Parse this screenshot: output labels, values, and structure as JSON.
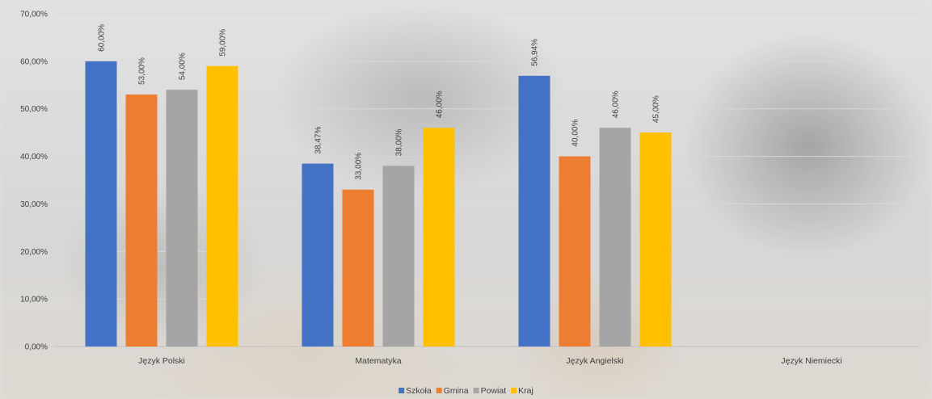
{
  "chart_data": {
    "type": "bar",
    "categories": [
      "Język Polski",
      "Matematyka",
      "Język Angielski",
      "Język Niemiecki"
    ],
    "series": [
      {
        "name": "Szkoła",
        "color": "#4472C4",
        "values": [
          60.0,
          38.47,
          56.94,
          null
        ],
        "labels": [
          "60,00%",
          "38,47%",
          "56,94%",
          null
        ]
      },
      {
        "name": "Gmina",
        "color": "#ED7D31",
        "values": [
          53.0,
          33.0,
          40.0,
          null
        ],
        "labels": [
          "53,00%",
          "33,00%",
          "40,00%",
          null
        ]
      },
      {
        "name": "Powiat",
        "color": "#A5A5A5",
        "values": [
          54.0,
          38.0,
          46.0,
          null
        ],
        "labels": [
          "54,00%",
          "38,00%",
          "46,00%",
          null
        ]
      },
      {
        "name": "Kraj",
        "color": "#FFC000",
        "values": [
          59.0,
          46.0,
          45.0,
          null
        ],
        "labels": [
          "59,00%",
          "46,00%",
          "45,00%",
          null
        ]
      }
    ],
    "y_ticks": [
      "0,00%",
      "10,00%",
      "20,00%",
      "30,00%",
      "40,00%",
      "50,00%",
      "60,00%",
      "70,00%"
    ],
    "ylim": [
      0,
      70
    ],
    "grid": true,
    "legend_position": "bottom",
    "title": "",
    "xlabel": "",
    "ylabel": ""
  }
}
